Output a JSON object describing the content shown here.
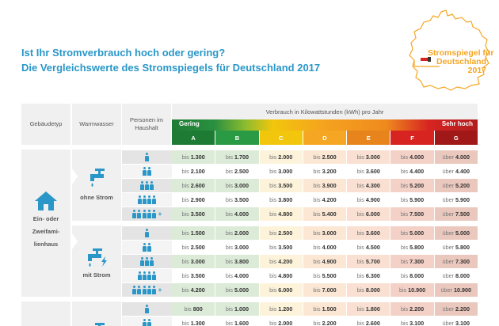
{
  "header": {
    "title_line1": "Ist Ihr Stromverbrauch hoch oder gering?",
    "title_line2": "Die Vergleichswerte des Stromspiegels für Deutschland 2017"
  },
  "logo": {
    "line1": "Stromspiegel für",
    "line2": "Deutschland",
    "line3": "2017",
    "icon": "germany-map-plug-icon",
    "color": "#f5a623"
  },
  "table": {
    "col_gebaeudetyp": "Gebäudetyp",
    "col_warmwasser": "Warmwasser",
    "col_personen": "Personen im Haushalt",
    "col_verbrauch": "Verbrauch in Kilowattstunden (kWh) pro Jahr",
    "scale_low": "Gering",
    "scale_high": "Sehr hoch",
    "grades": [
      {
        "label": "A",
        "color": "#1e7b34"
      },
      {
        "label": "B",
        "color": "#2a9a45"
      },
      {
        "label": "C",
        "color": "#f2c60c"
      },
      {
        "label": "D",
        "color": "#f5a623"
      },
      {
        "label": "E",
        "color": "#e8841c"
      },
      {
        "label": "F",
        "color": "#d72421"
      },
      {
        "label": "G",
        "color": "#a01818"
      }
    ],
    "groups": [
      {
        "gebaeudetyp": "Ein- oder Zweifamilienhaus",
        "gebaeudetyp_lines": [
          "Ein- oder",
          "Zweifami-",
          "lienhaus"
        ],
        "subgroups": [
          {
            "warmwasser": "ohne Strom",
            "rows": [
              {
                "persons": 1,
                "plus": false,
                "values": [
                  [
                    "bis",
                    "1.300"
                  ],
                  [
                    "bis",
                    "1.700"
                  ],
                  [
                    "bis",
                    "2.000"
                  ],
                  [
                    "bis",
                    "2.500"
                  ],
                  [
                    "bis",
                    "3.000"
                  ],
                  [
                    "bis",
                    "4.000"
                  ],
                  [
                    "über",
                    "4.000"
                  ]
                ]
              },
              {
                "persons": 2,
                "plus": false,
                "values": [
                  [
                    "bis",
                    "2.100"
                  ],
                  [
                    "bis",
                    "2.500"
                  ],
                  [
                    "bis",
                    "3.000"
                  ],
                  [
                    "bis",
                    "3.200"
                  ],
                  [
                    "bis",
                    "3.600"
                  ],
                  [
                    "bis",
                    "4.400"
                  ],
                  [
                    "über",
                    "4.400"
                  ]
                ]
              },
              {
                "persons": 3,
                "plus": false,
                "values": [
                  [
                    "bis",
                    "2.600"
                  ],
                  [
                    "bis",
                    "3.000"
                  ],
                  [
                    "bis",
                    "3.500"
                  ],
                  [
                    "bis",
                    "3.900"
                  ],
                  [
                    "bis",
                    "4.300"
                  ],
                  [
                    "bis",
                    "5.200"
                  ],
                  [
                    "über",
                    "5.200"
                  ]
                ]
              },
              {
                "persons": 4,
                "plus": false,
                "values": [
                  [
                    "bis",
                    "2.900"
                  ],
                  [
                    "bis",
                    "3.500"
                  ],
                  [
                    "bis",
                    "3.800"
                  ],
                  [
                    "bis",
                    "4.200"
                  ],
                  [
                    "bis",
                    "4.900"
                  ],
                  [
                    "bis",
                    "5.900"
                  ],
                  [
                    "über",
                    "5.900"
                  ]
                ]
              },
              {
                "persons": 5,
                "plus": true,
                "values": [
                  [
                    "bis",
                    "3.500"
                  ],
                  [
                    "bis",
                    "4.000"
                  ],
                  [
                    "bis",
                    "4.800"
                  ],
                  [
                    "bis",
                    "5.400"
                  ],
                  [
                    "bis",
                    "6.000"
                  ],
                  [
                    "bis",
                    "7.500"
                  ],
                  [
                    "über",
                    "7.500"
                  ]
                ]
              }
            ]
          },
          {
            "warmwasser": "mit Strom",
            "rows": [
              {
                "persons": 1,
                "plus": false,
                "values": [
                  [
                    "bis",
                    "1.500"
                  ],
                  [
                    "bis",
                    "2.000"
                  ],
                  [
                    "bis",
                    "2.500"
                  ],
                  [
                    "bis",
                    "3.000"
                  ],
                  [
                    "bis",
                    "3.600"
                  ],
                  [
                    "bis",
                    "5.000"
                  ],
                  [
                    "über",
                    "5.000"
                  ]
                ]
              },
              {
                "persons": 2,
                "plus": false,
                "values": [
                  [
                    "bis",
                    "2.500"
                  ],
                  [
                    "bis",
                    "3.000"
                  ],
                  [
                    "bis",
                    "3.500"
                  ],
                  [
                    "bis",
                    "4.000"
                  ],
                  [
                    "bis",
                    "4.500"
                  ],
                  [
                    "bis",
                    "5.800"
                  ],
                  [
                    "über",
                    "5.800"
                  ]
                ]
              },
              {
                "persons": 3,
                "plus": false,
                "values": [
                  [
                    "bis",
                    "3.000"
                  ],
                  [
                    "bis",
                    "3.800"
                  ],
                  [
                    "bis",
                    "4.200"
                  ],
                  [
                    "bis",
                    "4.900"
                  ],
                  [
                    "bis",
                    "5.700"
                  ],
                  [
                    "bis",
                    "7.300"
                  ],
                  [
                    "über",
                    "7.300"
                  ]
                ]
              },
              {
                "persons": 4,
                "plus": false,
                "values": [
                  [
                    "bis",
                    "3.500"
                  ],
                  [
                    "bis",
                    "4.000"
                  ],
                  [
                    "bis",
                    "4.800"
                  ],
                  [
                    "bis",
                    "5.500"
                  ],
                  [
                    "bis",
                    "6.300"
                  ],
                  [
                    "bis",
                    "8.000"
                  ],
                  [
                    "über",
                    "8.000"
                  ]
                ]
              },
              {
                "persons": 5,
                "plus": true,
                "values": [
                  [
                    "bis",
                    "4.200"
                  ],
                  [
                    "bis",
                    "5.000"
                  ],
                  [
                    "bis",
                    "6.000"
                  ],
                  [
                    "bis",
                    "7.000"
                  ],
                  [
                    "bis",
                    "8.000"
                  ],
                  [
                    "bis",
                    "10.900"
                  ],
                  [
                    "über",
                    "10.900"
                  ]
                ]
              }
            ]
          }
        ]
      },
      {
        "gebaeudetyp": "",
        "subgroups": [
          {
            "warmwasser": "",
            "rows": [
              {
                "persons": 1,
                "plus": false,
                "values": [
                  [
                    "bis",
                    "800"
                  ],
                  [
                    "bis",
                    "1.000"
                  ],
                  [
                    "bis",
                    "1.200"
                  ],
                  [
                    "bis",
                    "1.500"
                  ],
                  [
                    "bis",
                    "1.800"
                  ],
                  [
                    "bis",
                    "2.200"
                  ],
                  [
                    "über",
                    "2.200"
                  ]
                ]
              },
              {
                "persons": 2,
                "plus": false,
                "values": [
                  [
                    "bis",
                    "1.300"
                  ],
                  [
                    "bis",
                    "1.600"
                  ],
                  [
                    "bis",
                    "2.000"
                  ],
                  [
                    "bis",
                    "2.200"
                  ],
                  [
                    "bis",
                    "2.600"
                  ],
                  [
                    "bis",
                    "3.100"
                  ],
                  [
                    "über",
                    "3.100"
                  ]
                ]
              }
            ]
          }
        ]
      }
    ]
  },
  "icons": {
    "house": "house-icon",
    "tap": "water-tap-icon",
    "tap_electric": "water-tap-lightning-icon",
    "person": "person-icon"
  }
}
